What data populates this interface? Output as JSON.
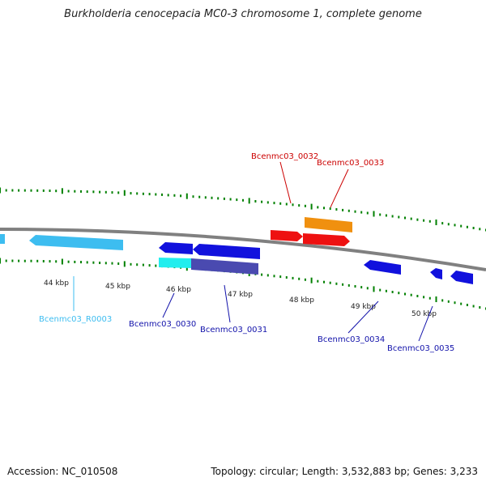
{
  "title": "Burkholderia cenocepacia MC0-3 chromosome 1, complete genome",
  "accession": "Accession: NC_010508",
  "summary": "Topology: circular; Length: 3,532,883 bp; Genes: 3,233",
  "colors": {
    "backbone": "#808080",
    "tick": "#008000",
    "gene_blue": "#1111dd",
    "gene_light_blue": "#3dbdf0",
    "gene_cyan": "#22eeee",
    "gene_slate": "#4a4ab0",
    "gene_red": "#ee1111",
    "gene_orange": "#f0900f"
  },
  "kbp_labels": [
    "44 kbp",
    "45 kbp",
    "46 kbp",
    "47 kbp",
    "48 kbp",
    "49 kbp",
    "50 kbp"
  ],
  "genes": [
    {
      "label": "Bcenmc03_R0003",
      "color": "#3dbdf0"
    },
    {
      "label": "Bcenmc03_0030",
      "color": "#1111aa"
    },
    {
      "label": "Bcenmc03_0031",
      "color": "#1111aa"
    },
    {
      "label": "Bcenmc03_0032",
      "color": "#cc0000"
    },
    {
      "label": "Bcenmc03_0033",
      "color": "#cc0000"
    },
    {
      "label": "Bcenmc03_0034",
      "color": "#1111aa"
    },
    {
      "label": "Bcenmc03_0035",
      "color": "#1111aa"
    }
  ]
}
